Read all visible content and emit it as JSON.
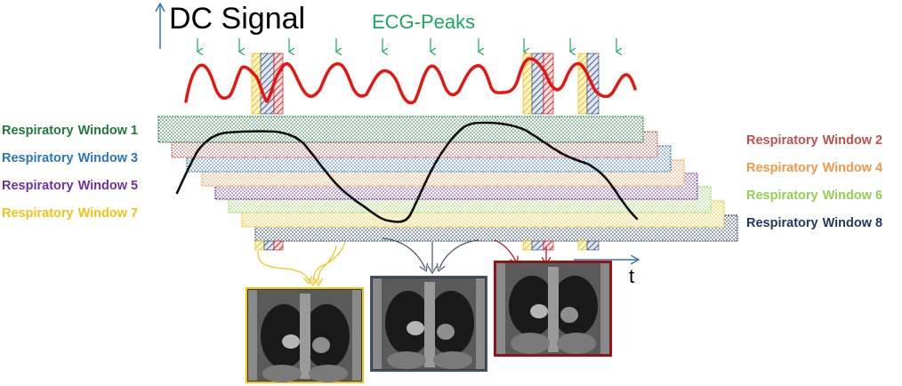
{
  "title": "DC Signal",
  "ecg_label": "ECG-Peaks",
  "time_label": "t",
  "colors": {
    "signal": "#e8140e",
    "respiration": "#111111",
    "ecg_arrows": "#1aa85a",
    "window_green": "#1e7a3a",
    "window_red": "#c0504d",
    "window_blue": "#2e75b6",
    "window_orange": "#f79646",
    "window_purple": "#7030a0",
    "window_lightgreen": "#92d050",
    "window_yellow": "#f2c314",
    "window_navy": "#1f3864",
    "frame_yellow": "#f2c314",
    "frame_blue": "#44546a",
    "frame_red": "#c00000"
  },
  "windows": [
    {
      "word": "Respiratory",
      "number": "Window 1",
      "color": "#1e7a3a"
    },
    {
      "word": "Respiratory",
      "number": "Window 2",
      "color": "#c0504d"
    },
    {
      "word": "Respiratory",
      "number": "Window 3",
      "color": "#2e75b6"
    },
    {
      "word": "Respiratory",
      "number": "Window 4",
      "color": "#f79646"
    },
    {
      "word": "Respiratory",
      "number": "Window 5",
      "color": "#7030a0"
    },
    {
      "word": "Respiratory",
      "number": "Window 6",
      "color": "#92d050"
    },
    {
      "word": "Respiratory",
      "number": "Window 7",
      "color": "#f2c314"
    },
    {
      "word": "Respiratory",
      "number": "Window 8",
      "color": "#1f3864"
    }
  ],
  "images": [
    {
      "name": "mri-image-yellow-window",
      "frame_color": "#f2c314"
    },
    {
      "name": "mri-image-blue-window",
      "frame_color": "#44546a"
    },
    {
      "name": "mri-image-red-window",
      "frame_color": "#c00000"
    }
  ]
}
